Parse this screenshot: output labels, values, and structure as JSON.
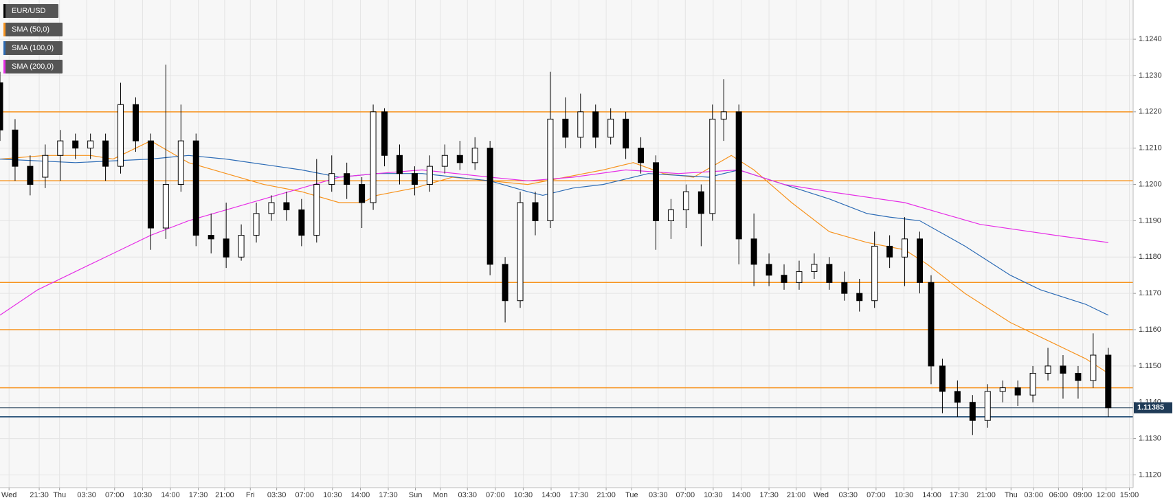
{
  "chart_data": {
    "type": "candlestick",
    "name": "EUR/USD",
    "up_color": "#ffffff",
    "down_color": "#000000",
    "x": [
      0,
      4,
      8,
      12,
      16,
      20,
      24,
      28,
      32,
      36,
      40,
      44,
      48,
      52,
      56,
      60,
      64,
      68,
      72,
      76,
      80,
      84,
      88,
      92,
      96,
      99,
      102,
      106,
      110,
      114,
      118,
      122,
      126,
      130,
      134,
      138,
      142,
      146,
      150,
      154,
      158,
      162,
      166,
      170,
      174,
      178,
      182,
      186,
      189,
      192,
      196,
      200,
      204,
      208,
      212,
      216,
      220,
      224,
      228,
      232,
      236,
      240,
      244,
      247,
      250,
      254,
      258,
      262,
      266,
      270,
      274,
      278,
      282,
      286,
      290,
      294
    ],
    "open": [
      1.1228,
      1.1215,
      1.1205,
      1.1202,
      1.1208,
      1.1212,
      1.121,
      1.1212,
      1.1205,
      1.1222,
      1.1212,
      1.1188,
      1.12,
      1.1212,
      1.1186,
      1.1185,
      1.118,
      1.1186,
      1.1192,
      1.1195,
      1.1193,
      1.1186,
      1.12,
      1.1203,
      1.12,
      1.1195,
      1.122,
      1.1208,
      1.1203,
      1.12,
      1.1205,
      1.1208,
      1.1206,
      1.121,
      1.1178,
      1.1168,
      1.1195,
      1.119,
      1.1218,
      1.1213,
      1.122,
      1.1213,
      1.1218,
      1.121,
      1.1206,
      1.119,
      1.1193,
      1.1198,
      1.1192,
      1.1218,
      1.122,
      1.1185,
      1.1178,
      1.1175,
      1.1173,
      1.1176,
      1.1178,
      1.1173,
      1.117,
      1.1168,
      1.1183,
      1.118,
      1.1185,
      1.1173,
      1.115,
      1.1143,
      1.114,
      1.1135,
      1.1143,
      1.1144,
      1.1142,
      1.1148,
      1.115,
      1.1148,
      1.1146,
      1.1153
    ],
    "high": [
      1.1231,
      1.1218,
      1.1208,
      1.1211,
      1.1215,
      1.1214,
      1.1214,
      1.1214,
      1.1228,
      1.1224,
      1.1214,
      1.1233,
      1.1222,
      1.1214,
      1.1192,
      1.1195,
      1.1189,
      1.1195,
      1.1197,
      1.1198,
      1.1196,
      1.1207,
      1.1208,
      1.1206,
      1.1202,
      1.1222,
      1.1221,
      1.1211,
      1.1205,
      1.1208,
      1.1211,
      1.1212,
      1.1213,
      1.1212,
      1.118,
      1.1198,
      1.1198,
      1.1231,
      1.1224,
      1.1225,
      1.1222,
      1.1221,
      1.122,
      1.1213,
      1.1208,
      1.1196,
      1.12,
      1.12,
      1.1222,
      1.1229,
      1.1222,
      1.1192,
      1.1181,
      1.1178,
      1.1179,
      1.1181,
      1.118,
      1.1176,
      1.1174,
      1.1187,
      1.1186,
      1.1191,
      1.1187,
      1.1175,
      1.1152,
      1.1146,
      1.1142,
      1.1145,
      1.1146,
      1.1146,
      1.115,
      1.1155,
      1.1153,
      1.115,
      1.1159,
      1.1155
    ],
    "low": [
      1.1212,
      1.1201,
      1.1197,
      1.1199,
      1.1201,
      1.1207,
      1.1207,
      1.1201,
      1.1203,
      1.1209,
      1.1182,
      1.1185,
      1.1198,
      1.1183,
      1.1181,
      1.1177,
      1.1179,
      1.1184,
      1.119,
      1.119,
      1.1183,
      1.1184,
      1.1198,
      1.1196,
      1.1188,
      1.1193,
      1.1205,
      1.12,
      1.1197,
      1.1198,
      1.1203,
      1.1204,
      1.1204,
      1.1175,
      1.1162,
      1.1166,
      1.1186,
      1.1188,
      1.121,
      1.121,
      1.121,
      1.1211,
      1.1207,
      1.1203,
      1.1182,
      1.1185,
      1.1188,
      1.1183,
      1.119,
      1.1212,
      1.1178,
      1.1172,
      1.1172,
      1.1171,
      1.1171,
      1.1174,
      1.1171,
      1.1168,
      1.1165,
      1.1166,
      1.1177,
      1.1172,
      1.117,
      1.1145,
      1.1137,
      1.1136,
      1.1131,
      1.1133,
      1.114,
      1.1139,
      1.114,
      1.1146,
      1.1141,
      1.1141,
      1.1144,
      1.1136
    ],
    "close": [
      1.1215,
      1.1205,
      1.12,
      1.1208,
      1.1212,
      1.121,
      1.1212,
      1.1205,
      1.1222,
      1.1212,
      1.1188,
      1.12,
      1.1212,
      1.1186,
      1.1185,
      1.118,
      1.1186,
      1.1192,
      1.1195,
      1.1193,
      1.1186,
      1.12,
      1.1203,
      1.12,
      1.1195,
      1.122,
      1.1208,
      1.1203,
      1.12,
      1.1205,
      1.1208,
      1.1206,
      1.121,
      1.1178,
      1.1168,
      1.1195,
      1.119,
      1.1218,
      1.1213,
      1.122,
      1.1213,
      1.1218,
      1.121,
      1.1206,
      1.119,
      1.1193,
      1.1198,
      1.1192,
      1.1218,
      1.122,
      1.1185,
      1.1178,
      1.1175,
      1.1173,
      1.1176,
      1.1178,
      1.1173,
      1.117,
      1.1168,
      1.1183,
      1.118,
      1.1185,
      1.1173,
      1.115,
      1.1143,
      1.114,
      1.1135,
      1.1143,
      1.1144,
      1.1142,
      1.1148,
      1.115,
      1.1148,
      1.1146,
      1.1153,
      1.11385
    ],
    "series": [
      {
        "name": "SMA (50,0)",
        "color": "#f7931e",
        "x": [
          0,
          12,
          24,
          30,
          40,
          50,
          60,
          70,
          80,
          90,
          96,
          100,
          110,
          120,
          130,
          140,
          150,
          160,
          168,
          176,
          184,
          194,
          200,
          210,
          220,
          230,
          240,
          246,
          256,
          268,
          280,
          288,
          294
        ],
        "values": [
          1.1207,
          1.1208,
          1.1208,
          1.1207,
          1.1212,
          1.1206,
          1.1203,
          1.12,
          1.1198,
          1.1195,
          1.1195,
          1.1197,
          1.1199,
          1.1202,
          1.1201,
          1.12,
          1.1202,
          1.1204,
          1.1206,
          1.1203,
          1.1202,
          1.1208,
          1.1204,
          1.1195,
          1.1187,
          1.1184,
          1.1182,
          1.1178,
          1.117,
          1.1162,
          1.1156,
          1.1152,
          1.1148
        ]
      },
      {
        "name": "SMA (100,0)",
        "color": "#2c6bb5",
        "x": [
          0,
          20,
          40,
          50,
          60,
          80,
          90,
          100,
          112,
          130,
          140,
          144,
          152,
          160,
          172,
          188,
          196,
          208,
          220,
          230,
          236,
          244,
          256,
          268,
          276,
          288,
          294
        ],
        "values": [
          1.1207,
          1.1206,
          1.1207,
          1.1208,
          1.1207,
          1.1204,
          1.1202,
          1.1203,
          1.1203,
          1.1201,
          1.1198,
          1.1197,
          1.1199,
          1.12,
          1.1203,
          1.1202,
          1.1204,
          1.12,
          1.1196,
          1.1192,
          1.1191,
          1.119,
          1.1183,
          1.1175,
          1.1171,
          1.1167,
          1.1164
        ]
      },
      {
        "name": "SMA (200,0)",
        "color": "#e62ee6",
        "x": [
          0,
          10,
          20,
          30,
          40,
          50,
          60,
          70,
          80,
          90,
          100,
          112,
          130,
          140,
          152,
          166,
          180,
          196,
          208,
          220,
          240,
          250,
          260,
          280,
          294
        ],
        "values": [
          1.1164,
          1.1171,
          1.1176,
          1.1181,
          1.1186,
          1.119,
          1.1193,
          1.1196,
          1.1199,
          1.1202,
          1.1203,
          1.1204,
          1.1202,
          1.1201,
          1.1202,
          1.1204,
          1.1203,
          1.1204,
          1.12,
          1.1198,
          1.1195,
          1.1192,
          1.1189,
          1.1186,
          1.1184
        ]
      }
    ],
    "levels": {
      "color": "#f7931e",
      "values": [
        1.122,
        1.1201,
        1.1173,
        1.116,
        1.1144
      ]
    },
    "support": {
      "color": "#0b3a66",
      "values": [
        1.1136
      ]
    },
    "last_price": 1.11385,
    "last_price_color": "#1f3b57",
    "xlim": [
      0,
      300.6
    ],
    "ylim": [
      1.11165,
      1.12508
    ],
    "grid": true,
    "xticks": [
      {
        "value": 2.4,
        "label": "Wed"
      },
      {
        "value": 10.4,
        "label": "21:30"
      },
      {
        "value": 15.8,
        "label": "Thu"
      },
      {
        "value": 23,
        "label": "03:30"
      },
      {
        "value": 30.4,
        "label": "07:00"
      },
      {
        "value": 37.8,
        "label": "10:30"
      },
      {
        "value": 45.2,
        "label": "14:00"
      },
      {
        "value": 52.6,
        "label": "17:30"
      },
      {
        "value": 59.6,
        "label": "21:00"
      },
      {
        "value": 66.4,
        "label": "Fri"
      },
      {
        "value": 73.4,
        "label": "03:30"
      },
      {
        "value": 80.8,
        "label": "07:00"
      },
      {
        "value": 88.2,
        "label": "10:30"
      },
      {
        "value": 95.6,
        "label": "14:00"
      },
      {
        "value": 103,
        "label": "17:30"
      },
      {
        "value": 110.2,
        "label": "Sun"
      },
      {
        "value": 116.8,
        "label": "Mon"
      },
      {
        "value": 124,
        "label": "03:30"
      },
      {
        "value": 131.4,
        "label": "07:00"
      },
      {
        "value": 138.8,
        "label": "10:30"
      },
      {
        "value": 146.2,
        "label": "14:00"
      },
      {
        "value": 153.6,
        "label": "17:30"
      },
      {
        "value": 160.8,
        "label": "21:00"
      },
      {
        "value": 167.6,
        "label": "Tue"
      },
      {
        "value": 174.6,
        "label": "03:30"
      },
      {
        "value": 181.8,
        "label": "07:00"
      },
      {
        "value": 189.2,
        "label": "10:30"
      },
      {
        "value": 196.6,
        "label": "14:00"
      },
      {
        "value": 204,
        "label": "17:30"
      },
      {
        "value": 211.2,
        "label": "21:00"
      },
      {
        "value": 217.8,
        "label": "Wed"
      },
      {
        "value": 225,
        "label": "03:30"
      },
      {
        "value": 232.4,
        "label": "07:00"
      },
      {
        "value": 239.8,
        "label": "10:30"
      },
      {
        "value": 247.2,
        "label": "14:00"
      },
      {
        "value": 254.4,
        "label": "17:30"
      },
      {
        "value": 261.6,
        "label": "21:00"
      },
      {
        "value": 268.2,
        "label": "Thu"
      },
      {
        "value": 274.2,
        "label": "03:00"
      },
      {
        "value": 280.8,
        "label": "06:00"
      },
      {
        "value": 287.2,
        "label": "09:00"
      },
      {
        "value": 293.4,
        "label": "12:00"
      },
      {
        "value": 299.6,
        "label": "15:00"
      }
    ],
    "yticks": [
      {
        "value": 1.112,
        "label": "1.1120"
      },
      {
        "value": 1.113,
        "label": "1.1130"
      },
      {
        "value": 1.114,
        "label": "1.1140"
      },
      {
        "value": 1.115,
        "label": "1.1150"
      },
      {
        "value": 1.116,
        "label": "1.1160"
      },
      {
        "value": 1.117,
        "label": "1.1170"
      },
      {
        "value": 1.118,
        "label": "1.1180"
      },
      {
        "value": 1.119,
        "label": "1.1190"
      },
      {
        "value": 1.12,
        "label": "1.1200"
      },
      {
        "value": 1.121,
        "label": "1.1210"
      },
      {
        "value": 1.122,
        "label": "1.1220"
      },
      {
        "value": 1.123,
        "label": "1.1230"
      },
      {
        "value": 1.124,
        "label": "1.1240"
      }
    ]
  }
}
